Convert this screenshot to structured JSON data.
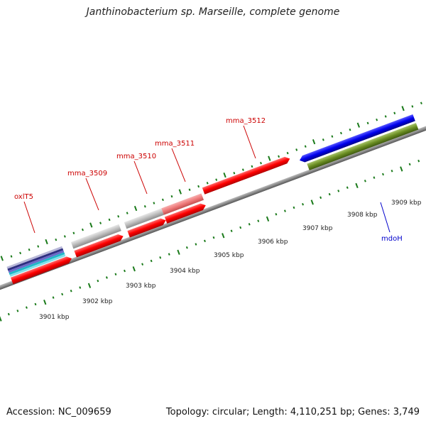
{
  "title": "Janthinobacterium sp. Marseille, complete genome",
  "footer": {
    "accession": "Accession: NC_009659",
    "summary": "Topology: circular; Length: 4,110,251 bp; Genes: 3,749"
  },
  "colors": {
    "cds_red": "#ff0000",
    "cds_gray": "#bdbdbd",
    "cds_pink": "#ef7a7a",
    "cds_blue": "#0000ee",
    "cds_olive": "#6b8e23",
    "backbone": "#888888",
    "tick": "#1a7a1a",
    "label_red": "#cc0000",
    "label_blue": "#0000cc"
  },
  "scale_ticks": [
    {
      "label": "3901 kbp"
    },
    {
      "label": "3902 kbp"
    },
    {
      "label": "3903 kbp"
    },
    {
      "label": "3904 kbp"
    },
    {
      "label": "3905 kbp"
    },
    {
      "label": "3906 kbp"
    },
    {
      "label": "3907 kbp"
    },
    {
      "label": "3908 kbp"
    },
    {
      "label": "3909 kbp"
    }
  ],
  "gene_labels": [
    {
      "name": "oxlT5",
      "color": "red"
    },
    {
      "name": "mma_3509",
      "color": "red"
    },
    {
      "name": "mma_3510",
      "color": "red"
    },
    {
      "name": "mma_3511",
      "color": "red"
    },
    {
      "name": "mma_3512",
      "color": "red"
    },
    {
      "name": "mdoH",
      "color": "blue"
    }
  ]
}
